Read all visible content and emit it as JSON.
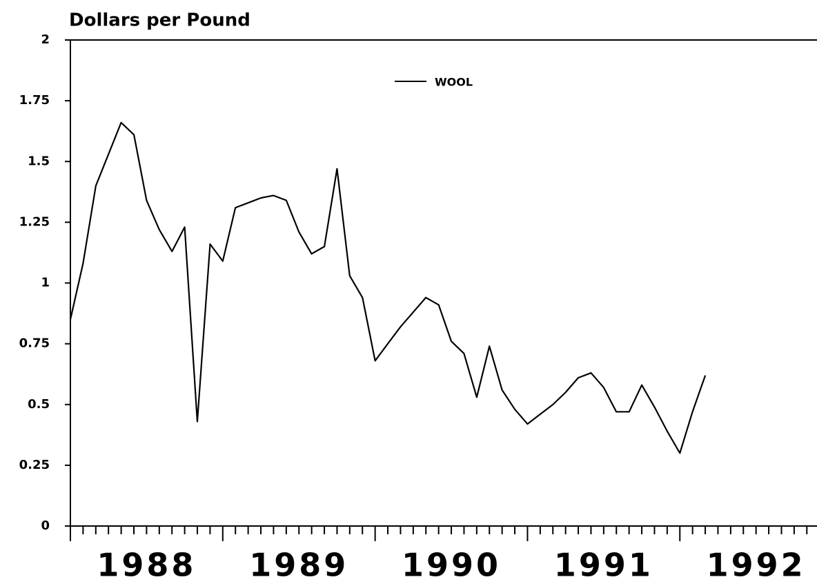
{
  "chart_data": {
    "type": "line",
    "title": "Dollars per Pound",
    "x": [
      1988.0,
      1988.083,
      1988.167,
      1988.25,
      1988.333,
      1988.417,
      1988.5,
      1988.583,
      1988.667,
      1988.75,
      1988.833,
      1988.917,
      1989.0,
      1989.083,
      1989.167,
      1989.25,
      1989.333,
      1989.417,
      1989.5,
      1989.583,
      1989.667,
      1989.75,
      1989.833,
      1989.917,
      1990.0,
      1990.083,
      1990.167,
      1990.25,
      1990.333,
      1990.417,
      1990.5,
      1990.583,
      1990.667,
      1990.75,
      1990.833,
      1990.917,
      1991.0,
      1991.083,
      1991.167,
      1991.25,
      1991.333,
      1991.417,
      1991.5,
      1991.583,
      1991.667,
      1991.75,
      1991.833,
      1991.917,
      1992.0,
      1992.083,
      1992.167
    ],
    "series": [
      {
        "name": "WOOL",
        "color": "#000000",
        "values": [
          0.85,
          1.08,
          1.4,
          1.53,
          1.66,
          1.61,
          1.34,
          1.22,
          1.13,
          1.23,
          0.43,
          1.16,
          1.09,
          1.31,
          1.33,
          1.35,
          1.36,
          1.34,
          1.21,
          1.12,
          1.15,
          1.47,
          1.03,
          0.94,
          0.68,
          0.75,
          0.82,
          0.88,
          0.94,
          0.91,
          0.76,
          0.71,
          0.53,
          0.74,
          0.56,
          0.48,
          0.42,
          0.46,
          0.5,
          0.55,
          0.61,
          0.63,
          0.57,
          0.47,
          0.47,
          0.58,
          0.49,
          0.39,
          0.3,
          0.47,
          0.62
        ]
      }
    ],
    "xlim": [
      1988,
      1992.9
    ],
    "xticks": [
      1988,
      1989,
      1990,
      1991,
      1992
    ],
    "ylim": [
      0,
      2
    ],
    "yticks": [
      0,
      0.25,
      0.5,
      0.75,
      1,
      1.25,
      1.5,
      1.75,
      2
    ]
  }
}
